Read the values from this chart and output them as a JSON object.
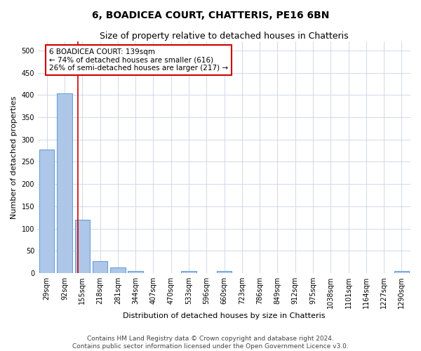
{
  "title": "6, BOADICEA COURT, CHATTERIS, PE16 6BN",
  "subtitle": "Size of property relative to detached houses in Chatteris",
  "xlabel": "Distribution of detached houses by size in Chatteris",
  "ylabel": "Number of detached properties",
  "bar_labels": [
    "29sqm",
    "92sqm",
    "155sqm",
    "218sqm",
    "281sqm",
    "344sqm",
    "407sqm",
    "470sqm",
    "533sqm",
    "596sqm",
    "660sqm",
    "723sqm",
    "786sqm",
    "849sqm",
    "912sqm",
    "975sqm",
    "1038sqm",
    "1101sqm",
    "1164sqm",
    "1227sqm",
    "1290sqm"
  ],
  "bar_values": [
    277,
    404,
    120,
    27,
    13,
    5,
    0,
    0,
    5,
    0,
    5,
    0,
    0,
    0,
    0,
    0,
    0,
    0,
    0,
    0,
    5
  ],
  "bar_color": "#aec6e8",
  "bar_edge_color": "#5b9bd5",
  "annotation_line1": "6 BOADICEA COURT: 139sqm",
  "annotation_line2": "← 74% of detached houses are smaller (616)",
  "annotation_line3": "26% of semi-detached houses are larger (217) →",
  "annotation_box_color": "#ffffff",
  "annotation_box_edge_color": "#cc0000",
  "vline_color": "#cc0000",
  "vline_x": 1.74,
  "ylim": [
    0,
    520
  ],
  "yticks": [
    0,
    50,
    100,
    150,
    200,
    250,
    300,
    350,
    400,
    450,
    500
  ],
  "footer1": "Contains HM Land Registry data © Crown copyright and database right 2024.",
  "footer2": "Contains public sector information licensed under the Open Government Licence v3.0.",
  "bg_color": "#ffffff",
  "grid_color": "#d0d8e8",
  "title_fontsize": 10,
  "subtitle_fontsize": 9,
  "axis_label_fontsize": 8,
  "tick_fontsize": 7,
  "annotation_fontsize": 7.5,
  "footer_fontsize": 6.5
}
